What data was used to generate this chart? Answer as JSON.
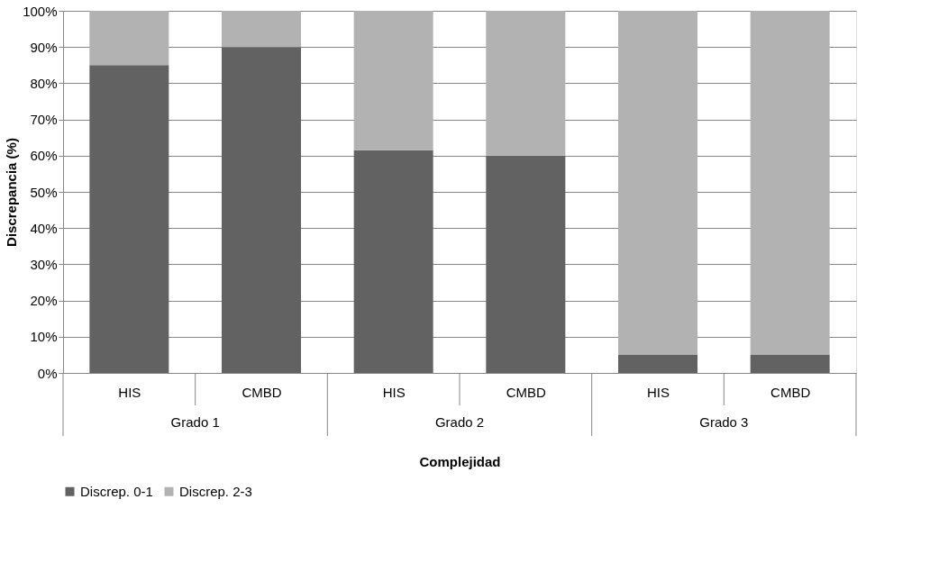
{
  "chart_data": {
    "type": "bar",
    "stacked": true,
    "xlabel": "Complejidad",
    "ylabel": "Discrepancia  (%)",
    "categories": [
      "HIS",
      "CMBD",
      "HIS",
      "CMBD",
      "HIS",
      "CMBD"
    ],
    "annotations": [
      "Grado 1",
      "Grado 2",
      "Grado 3"
    ],
    "series": [
      {
        "name": "Discrep. 0-1",
        "color": "#626262",
        "values": [
          85,
          90,
          61.5,
          60,
          5,
          5
        ]
      },
      {
        "name": "Discrep. 2-3",
        "color": "#b2b2b2",
        "values": [
          15,
          10,
          38.5,
          40,
          95,
          95
        ]
      }
    ],
    "ylim": [
      0,
      100
    ],
    "yticks": [
      {
        "value": 0,
        "label": "0%"
      },
      {
        "value": 10,
        "label": "10%"
      },
      {
        "value": 20,
        "label": "20%"
      },
      {
        "value": 30,
        "label": "30%"
      },
      {
        "value": 40,
        "label": "40%"
      },
      {
        "value": 50,
        "label": "50%"
      },
      {
        "value": 60,
        "label": "60%"
      },
      {
        "value": 70,
        "label": "70%"
      },
      {
        "value": 80,
        "label": "80%"
      },
      {
        "value": 90,
        "label": "90%"
      },
      {
        "value": 100,
        "label": "100%"
      }
    ],
    "grid": "y",
    "legend": "bottom"
  }
}
